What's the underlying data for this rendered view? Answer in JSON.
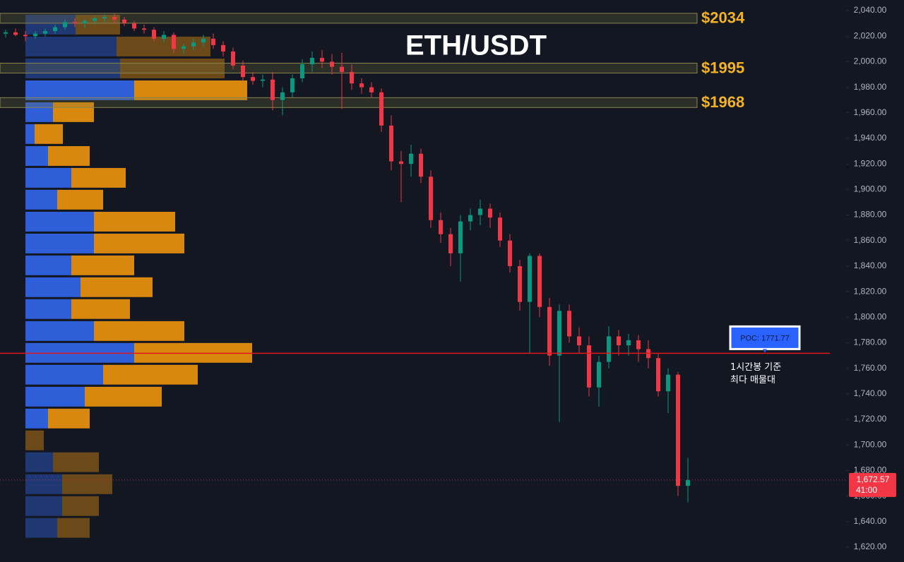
{
  "chart_data": {
    "type": "candlestick",
    "title": "ETH/USDT",
    "ylim": [
      1608.4,
      2048.3
    ],
    "yticks": [
      {
        "value": 1620,
        "label": "1,620.00"
      },
      {
        "value": 1640,
        "label": "1,640.00"
      },
      {
        "value": 1660,
        "label": "1,660.00"
      },
      {
        "value": 1680,
        "label": "1,680.00"
      },
      {
        "value": 1700,
        "label": "1,700.00"
      },
      {
        "value": 1720,
        "label": "1,720.00"
      },
      {
        "value": 1740,
        "label": "1,740.00"
      },
      {
        "value": 1760,
        "label": "1,760.00"
      },
      {
        "value": 1780,
        "label": "1,780.00"
      },
      {
        "value": 1800,
        "label": "1,800.00"
      },
      {
        "value": 1820,
        "label": "1,820.00"
      },
      {
        "value": 1840,
        "label": "1,840.00"
      },
      {
        "value": 1860,
        "label": "1,860.00"
      },
      {
        "value": 1880,
        "label": "1,880.00"
      },
      {
        "value": 1900,
        "label": "1,900.00"
      },
      {
        "value": 1920,
        "label": "1,920.00"
      },
      {
        "value": 1940,
        "label": "1,940.00"
      },
      {
        "value": 1960,
        "label": "1,960.00"
      },
      {
        "value": 1980,
        "label": "1,980.00"
      },
      {
        "value": 2000,
        "label": "2,000.00"
      },
      {
        "value": 2020,
        "label": "2,020.00"
      },
      {
        "value": 2040,
        "label": "2,040.00"
      }
    ],
    "up_color": "#089981",
    "down_color": "#f23645",
    "open": [
      2022,
      2023,
      2021,
      2020,
      2022,
      2024,
      2027,
      2031,
      2030,
      2032,
      2034,
      2035,
      2033,
      2030,
      2026,
      2025,
      2018,
      2021,
      2010,
      2012,
      2015,
      2018,
      2013,
      2008,
      1997,
      1988,
      1985,
      1986,
      1970,
      1976,
      1987,
      1998,
      2003,
      2000,
      1996,
      1992,
      1983,
      1980,
      1976,
      1950,
      1922,
      1920,
      1928,
      1910,
      1876,
      1865,
      1850,
      1875,
      1880,
      1885,
      1878,
      1860,
      1840,
      1812,
      1848,
      1808,
      1770,
      1805,
      1785,
      1778,
      1745,
      1765,
      1785,
      1778,
      1782,
      1775,
      1768,
      1742,
      1755,
      1668
    ],
    "high": [
      2025,
      2026,
      2024,
      2024,
      2026,
      2029,
      2033,
      2034,
      2033,
      2036,
      2037,
      2038,
      2035,
      2032,
      2029,
      2027,
      2024,
      2023,
      2014,
      2018,
      2021,
      2022,
      2016,
      2011,
      2001,
      1992,
      1990,
      1992,
      1980,
      1990,
      2002,
      2008,
      2009,
      2006,
      2007,
      1998,
      1987,
      1984,
      1979,
      1958,
      1930,
      1935,
      1932,
      1915,
      1882,
      1870,
      1880,
      1885,
      1892,
      1889,
      1882,
      1865,
      1845,
      1850,
      1850,
      1815,
      1810,
      1810,
      1792,
      1785,
      1770,
      1793,
      1790,
      1787,
      1786,
      1782,
      1772,
      1760,
      1757,
      1690
    ],
    "low": [
      2019,
      2020,
      2016,
      2018,
      2020,
      2022,
      2025,
      2027,
      2026,
      2029,
      2031,
      2030,
      2028,
      2024,
      2022,
      2016,
      2015,
      2007,
      2006,
      2009,
      2012,
      2010,
      2004,
      1994,
      1985,
      1982,
      1980,
      1962,
      1958,
      1972,
      1984,
      1992,
      1995,
      1990,
      1963,
      1978,
      1975,
      1972,
      1945,
      1915,
      1890,
      1910,
      1905,
      1870,
      1858,
      1840,
      1828,
      1868,
      1872,
      1870,
      1855,
      1835,
      1805,
      1772,
      1800,
      1762,
      1718,
      1780,
      1772,
      1738,
      1730,
      1760,
      1770,
      1770,
      1765,
      1760,
      1738,
      1725,
      1660,
      1655
    ],
    "close": [
      2023,
      2021,
      2020,
      2022,
      2024,
      2027,
      2031,
      2030,
      2032,
      2034,
      2035,
      2033,
      2030,
      2026,
      2025,
      2018,
      2021,
      2010,
      2012,
      2015,
      2018,
      2013,
      2008,
      1997,
      1988,
      1985,
      1986,
      1970,
      1976,
      1987,
      1998,
      2003,
      2000,
      1996,
      1992,
      1983,
      1980,
      1976,
      1950,
      1922,
      1920,
      1928,
      1910,
      1876,
      1865,
      1850,
      1875,
      1880,
      1885,
      1878,
      1860,
      1840,
      1812,
      1848,
      1808,
      1770,
      1805,
      1785,
      1778,
      1745,
      1765,
      1785,
      1778,
      1782,
      1775,
      1768,
      1742,
      1755,
      1668,
      1672.57
    ],
    "levels": [
      {
        "label": "$2034",
        "value": 2034
      },
      {
        "label": "$1995",
        "value": 1995
      },
      {
        "label": "$1968",
        "value": 1968
      }
    ],
    "poc": {
      "label": "POC: 1771.77",
      "value": 1771.77,
      "note": [
        "1시간봉 기준",
        "최다 매물대"
      ]
    },
    "last_price": {
      "label": "1,672.57",
      "value": 1672.57,
      "countdown": "41:00"
    },
    "volume_profile": {
      "buy_color": "#2f5fd8",
      "sell_color": "#d9880f",
      "prices": [
        2029,
        2011.9,
        1994.7,
        1977.6,
        1960.5,
        1943.4,
        1926.2,
        1909.1,
        1892,
        1874.8,
        1857.7,
        1840.6,
        1823.5,
        1806.4,
        1789.2,
        1772.1,
        1755,
        1737.8,
        1720.7,
        1703.6,
        1686.5,
        1669.3,
        1652.2,
        1635.1
      ],
      "buy": [
        71,
        129,
        134,
        154,
        39,
        13,
        32,
        65,
        45,
        97,
        97,
        65,
        78,
        65,
        97,
        154,
        110,
        84,
        32,
        0,
        39,
        52,
        52,
        45
      ],
      "sell": [
        63,
        133,
        148,
        160,
        58,
        40,
        59,
        77,
        65,
        115,
        128,
        89,
        102,
        83,
        128,
        167,
        134,
        109,
        59,
        26,
        65,
        71,
        52,
        46
      ]
    }
  }
}
